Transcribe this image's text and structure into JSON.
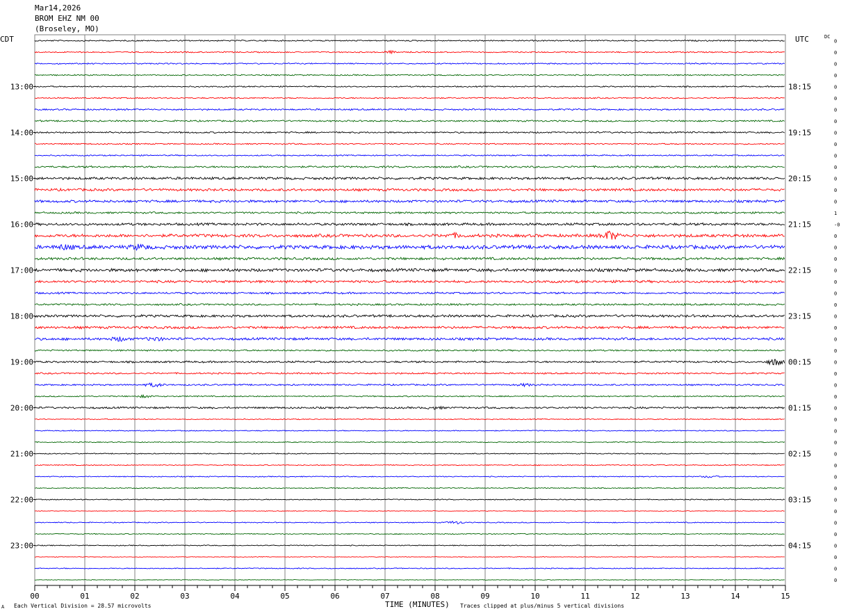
{
  "header": {
    "date": "Mar14,2026",
    "station": "BROM EHZ NM 00",
    "location": "(Broseley, MO)"
  },
  "left_tz": "CDT",
  "right_tz": "UTC",
  "dc_label": "DC",
  "footer": {
    "vertical_division": "Each Vertical Division =   28.57 microvolts",
    "clip_note": "Traces clipped at plus/minus 5 vertical divisions",
    "corner_mark": "A"
  },
  "colors": {
    "trace_cycle": [
      "#000000",
      "#ff0000",
      "#0000ff",
      "#006400"
    ],
    "grid": "#808080"
  },
  "chart_data": {
    "type": "line",
    "title": "",
    "xlabel": "TIME (MINUTES)",
    "ylabel": "",
    "xlim": [
      0,
      15
    ],
    "x_ticks": [
      "00",
      "01",
      "02",
      "03",
      "04",
      "05",
      "06",
      "07",
      "08",
      "09",
      "10",
      "11",
      "12",
      "13",
      "14",
      "15"
    ],
    "trace_count": 48,
    "minutes_per_trace": 15,
    "left_hour_labels": [
      {
        "trace": 4,
        "label": "13:00"
      },
      {
        "trace": 8,
        "label": "14:00"
      },
      {
        "trace": 12,
        "label": "15:00"
      },
      {
        "trace": 16,
        "label": "16:00"
      },
      {
        "trace": 20,
        "label": "17:00"
      },
      {
        "trace": 24,
        "label": "18:00"
      },
      {
        "trace": 28,
        "label": "19:00"
      },
      {
        "trace": 32,
        "label": "20:00"
      },
      {
        "trace": 36,
        "label": "21:00"
      },
      {
        "trace": 40,
        "label": "22:00"
      },
      {
        "trace": 44,
        "label": "23:00"
      }
    ],
    "right_hour_labels": [
      {
        "trace": 4,
        "label": "18:15"
      },
      {
        "trace": 8,
        "label": "19:15"
      },
      {
        "trace": 12,
        "label": "20:15"
      },
      {
        "trace": 16,
        "label": "21:15"
      },
      {
        "trace": 20,
        "label": "22:15"
      },
      {
        "trace": 24,
        "label": "23:15"
      },
      {
        "trace": 28,
        "label": "00:15"
      },
      {
        "trace": 32,
        "label": "01:15"
      },
      {
        "trace": 36,
        "label": "02:15"
      },
      {
        "trace": 40,
        "label": "03:15"
      },
      {
        "trace": 44,
        "label": "04:15"
      }
    ],
    "dc_values": [
      "0",
      "0",
      "0",
      "0",
      "0",
      "0",
      "0",
      "0",
      "0",
      "0",
      "0",
      "0",
      "0",
      "0",
      "0",
      "1",
      "-0",
      "0",
      "0",
      "0",
      "0",
      "0",
      "0",
      "0",
      "0",
      "0",
      "0",
      "0",
      "0",
      "0",
      "0",
      "0",
      "0",
      "0",
      "0",
      "0",
      "0",
      "0",
      "0",
      "0",
      "0",
      "0",
      "0",
      "0",
      "0",
      "0",
      "0",
      "0"
    ],
    "noise_level": [
      2,
      2,
      2,
      2,
      2,
      2,
      2.5,
      2.5,
      2.5,
      2,
      2,
      3,
      4,
      4,
      4,
      3,
      4,
      5,
      6,
      4,
      5,
      4,
      3,
      3,
      4,
      4,
      4,
      2.5,
      3,
      2.5,
      2.5,
      2,
      3,
      1.5,
      1.5,
      1.5,
      1.5,
      1.5,
      1.5,
      1.5,
      1.5,
      1,
      1.5,
      1.5,
      1.5,
      1,
      1.5,
      1
    ],
    "events": [
      {
        "trace": 1,
        "minute": 7.1,
        "amplitude": 3
      },
      {
        "trace": 17,
        "minute": 11.5,
        "amplitude": 12
      },
      {
        "trace": 17,
        "minute": 8.4,
        "amplitude": 4
      },
      {
        "trace": 18,
        "minute": 0.6,
        "amplitude": 5
      },
      {
        "trace": 18,
        "minute": 2.1,
        "amplitude": 6
      },
      {
        "trace": 26,
        "minute": 1.7,
        "amplitude": 5
      },
      {
        "trace": 26,
        "minute": 2.4,
        "amplitude": 4
      },
      {
        "trace": 28,
        "minute": 14.8,
        "amplitude": 9
      },
      {
        "trace": 30,
        "minute": 2.4,
        "amplitude": 5
      },
      {
        "trace": 30,
        "minute": 9.8,
        "amplitude": 3
      },
      {
        "trace": 31,
        "minute": 2.2,
        "amplitude": 3
      },
      {
        "trace": 32,
        "minute": 8.0,
        "amplitude": 3
      },
      {
        "trace": 38,
        "minute": 13.5,
        "amplitude": 3
      },
      {
        "trace": 42,
        "minute": 8.4,
        "amplitude": 4
      }
    ]
  }
}
